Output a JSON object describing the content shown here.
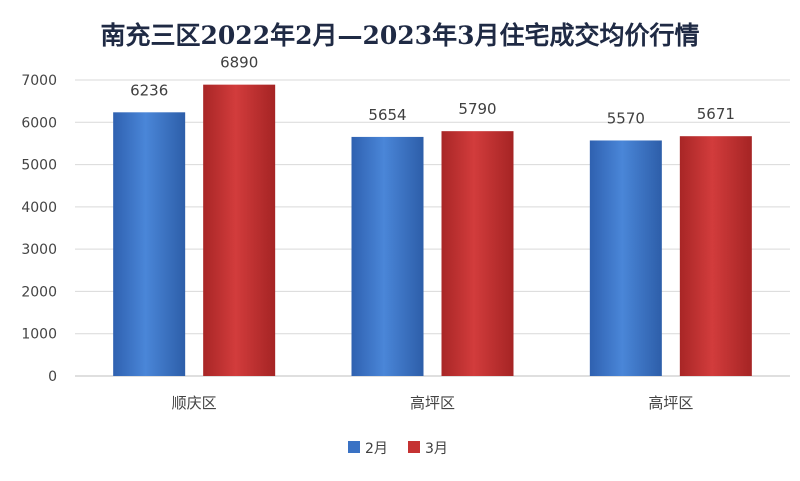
{
  "colors": {
    "series_2": "#3a72c4",
    "series_3": "#c53232",
    "title": "#1f2a44"
  },
  "chart_data": {
    "type": "bar",
    "title": "南充三区2022年2月—2023年3月住宅成交均价行情",
    "xlabel": "",
    "ylabel": "",
    "categories": [
      "顺庆区",
      "高坪区",
      "高坪区"
    ],
    "series": [
      {
        "name": "2月",
        "values": [
          6236,
          5654,
          5570
        ]
      },
      {
        "name": "3月",
        "values": [
          6890,
          5790,
          5671
        ]
      }
    ],
    "ylim": [
      0,
      7000
    ],
    "yticks": [
      0,
      1000,
      2000,
      3000,
      4000,
      5000,
      6000,
      7000
    ],
    "grid": true,
    "legend_position": "bottom"
  }
}
